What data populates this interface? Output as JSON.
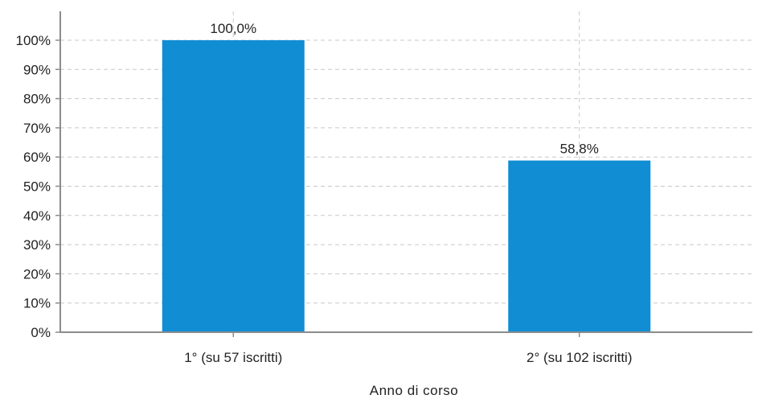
{
  "chart_data": {
    "type": "bar",
    "categories": [
      "1° (su 57 iscritti)",
      "2° (su 102 iscritti)"
    ],
    "values": [
      100.0,
      58.8
    ],
    "data_labels": [
      "100,0%",
      "58,8%"
    ],
    "title": "",
    "xlabel": "Anno di corso",
    "ylabel": "",
    "ylim": [
      0,
      100
    ],
    "yticks": [
      0,
      10,
      20,
      30,
      40,
      50,
      60,
      70,
      80,
      90,
      100
    ],
    "ytick_labels": [
      "0%",
      "10%",
      "20%",
      "30%",
      "40%",
      "50%",
      "60%",
      "70%",
      "80%",
      "90%",
      "100%"
    ],
    "grid": true,
    "legend": "none",
    "bar_color": "#118dd3"
  }
}
